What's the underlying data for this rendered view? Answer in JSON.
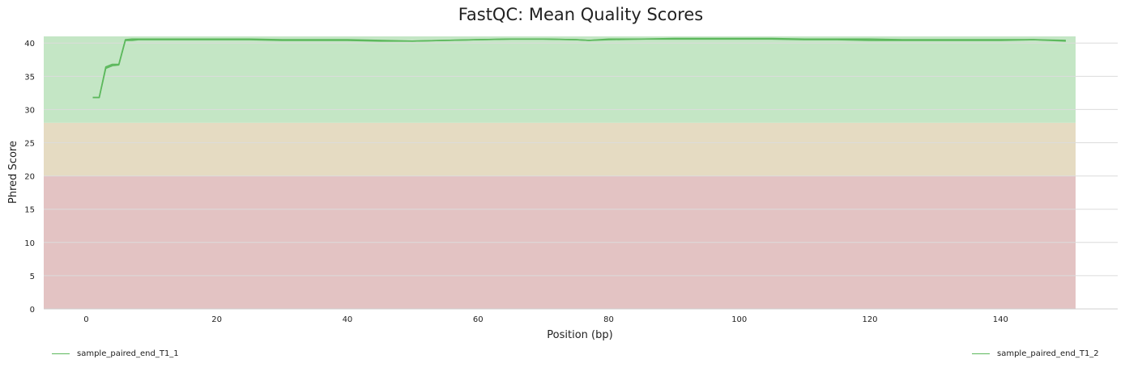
{
  "chart_data": {
    "type": "line",
    "title": "FastQC: Mean Quality Scores",
    "xlabel": "Position (bp)",
    "ylabel": "Phred Score",
    "xlim": [
      -6.5,
      151.5
    ],
    "ylim": [
      0,
      41
    ],
    "xticks": [
      0,
      20,
      40,
      60,
      80,
      100,
      120,
      140
    ],
    "yticks": [
      0,
      5,
      10,
      15,
      20,
      25,
      30,
      35,
      40
    ],
    "grid": true,
    "legend_position": "bottom",
    "bands": [
      {
        "from": 0,
        "to": 20,
        "color": "#e3c3c3"
      },
      {
        "from": 20,
        "to": 28,
        "color": "#e5dbc2"
      },
      {
        "from": 28,
        "to": 41,
        "color": "#c4e6c5"
      }
    ],
    "series": [
      {
        "name": "sample_paired_end_T1_1",
        "color": "#5cb85c",
        "x": [
          1,
          2,
          3,
          4,
          5,
          6,
          7,
          8,
          9,
          15,
          20,
          25,
          30,
          35,
          40,
          45,
          50,
          55,
          60,
          65,
          70,
          75,
          77,
          80,
          85,
          90,
          95,
          100,
          105,
          110,
          115,
          120,
          125,
          130,
          135,
          140,
          145,
          150
        ],
        "values": [
          31.8,
          31.8,
          36.2,
          36.6,
          36.7,
          40.4,
          40.4,
          40.5,
          40.5,
          40.5,
          40.5,
          40.5,
          40.4,
          40.4,
          40.4,
          40.3,
          40.3,
          40.4,
          40.5,
          40.6,
          40.6,
          40.5,
          40.4,
          40.5,
          40.6,
          40.6,
          40.6,
          40.6,
          40.6,
          40.5,
          40.5,
          40.4,
          40.4,
          40.4,
          40.4,
          40.4,
          40.5,
          40.3
        ]
      },
      {
        "name": "sample_paired_end_T1_2",
        "color": "#5cb85c",
        "x": [
          1,
          2,
          3,
          4,
          5,
          6,
          7,
          8,
          9,
          15,
          20,
          25,
          30,
          35,
          40,
          45,
          50,
          55,
          60,
          65,
          70,
          75,
          77,
          80,
          85,
          90,
          95,
          100,
          105,
          110,
          115,
          120,
          125,
          130,
          135,
          140,
          145,
          150
        ],
        "values": [
          31.8,
          31.8,
          36.4,
          36.8,
          36.8,
          40.5,
          40.6,
          40.6,
          40.6,
          40.6,
          40.6,
          40.6,
          40.5,
          40.5,
          40.5,
          40.4,
          40.3,
          40.4,
          40.5,
          40.6,
          40.6,
          40.5,
          40.4,
          40.6,
          40.6,
          40.7,
          40.7,
          40.7,
          40.7,
          40.6,
          40.6,
          40.6,
          40.5,
          40.5,
          40.5,
          40.5,
          40.5,
          40.4
        ]
      }
    ]
  }
}
